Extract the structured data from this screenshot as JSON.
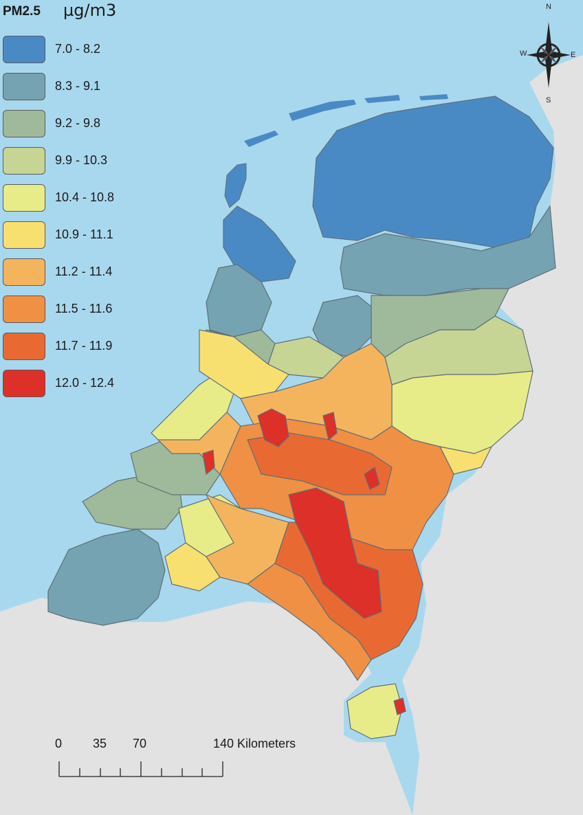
{
  "legend": {
    "title": "PM2.5",
    "unit": "µg/m3",
    "items": [
      {
        "label": "7.0 - 8.2",
        "color": "#4a8ac4"
      },
      {
        "label": "8.3 - 9.1",
        "color": "#75a3b2"
      },
      {
        "label": "9.2 - 9.8",
        "color": "#9fba9a"
      },
      {
        "label": "9.9 - 10.3",
        "color": "#c6d594"
      },
      {
        "label": "10.4 - 10.8",
        "color": "#e8ec88"
      },
      {
        "label": "10.9 - 11.1",
        "color": "#f8e070"
      },
      {
        "label": "11.2 - 11.4",
        "color": "#f4b45e"
      },
      {
        "label": "11.5 - 11.6",
        "color": "#ef9045"
      },
      {
        "label": "11.7 - 11.9",
        "color": "#e86a32"
      },
      {
        "label": "12.0 - 12.4",
        "color": "#dc3028"
      }
    ]
  },
  "compass": {
    "north": "N",
    "south": "S",
    "east": "E",
    "west": "W"
  },
  "scale_bar": {
    "labels": [
      "0",
      "35",
      "70",
      "140 Kilometers"
    ],
    "values_km": [
      0,
      35,
      70,
      140
    ]
  },
  "colors": {
    "sea": "#a8d8ee",
    "land_outside": "#e2e2e2",
    "boundary": "#5f6f78"
  }
}
